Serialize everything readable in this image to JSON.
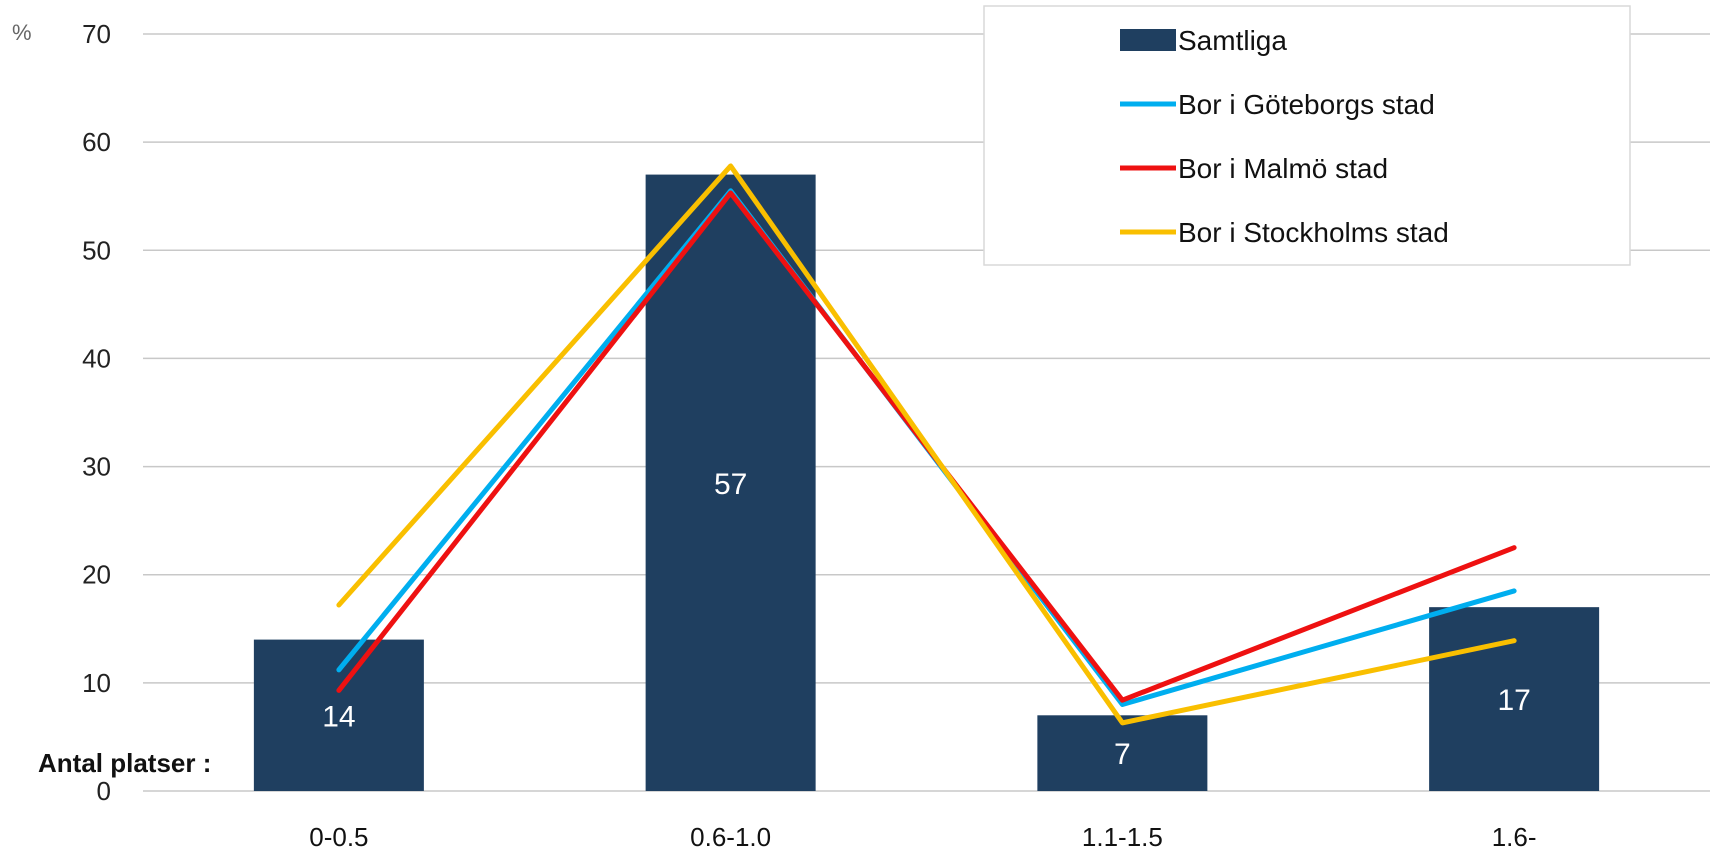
{
  "chart_data": {
    "type": "bar",
    "unit_label": "%",
    "xlabel": "Antal platser :",
    "ylabel": "",
    "ylim": [
      0,
      70
    ],
    "yticks": [
      0,
      10,
      20,
      30,
      40,
      50,
      60,
      70
    ],
    "grid": true,
    "legend_position": "top-right",
    "categories": [
      "0-0.5",
      "0.6-1.0",
      "1.1-1.5",
      "1.6-"
    ],
    "bar_series": {
      "name": "Samtliga",
      "values": [
        14,
        57,
        7,
        17
      ],
      "data_labels": [
        "14",
        "57",
        "7",
        "17"
      ],
      "color": "#1f3f60"
    },
    "line_series": [
      {
        "name": "Bor i Göteborgs stad",
        "values": [
          11.2,
          55.5,
          8.0,
          18.5
        ],
        "color": "#00aeef"
      },
      {
        "name": "Bor i Malmö stad",
        "values": [
          9.3,
          55.3,
          8.4,
          22.5
        ],
        "color": "#ee1111"
      },
      {
        "name": "Bor i Stockholms stad",
        "values": [
          17.2,
          57.8,
          6.3,
          13.9
        ],
        "color": "#f9bf00"
      }
    ]
  }
}
